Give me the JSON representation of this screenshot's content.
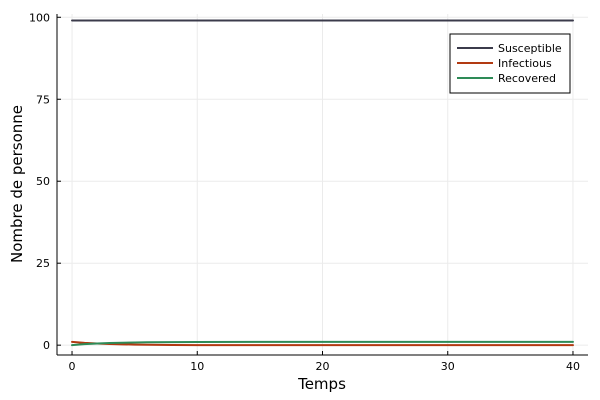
{
  "chart_data": {
    "type": "line",
    "title": "",
    "xlabel": "Temps",
    "ylabel": "Nombre de personne",
    "xlim": [
      -1.2,
      41.2
    ],
    "ylim": [
      -3,
      101
    ],
    "xticks": [
      0,
      10,
      20,
      30,
      40
    ],
    "yticks": [
      0,
      25,
      50,
      75,
      100
    ],
    "x_tick_labels": [
      "0",
      "10",
      "20",
      "30",
      "40"
    ],
    "y_tick_labels": [
      "0",
      "25",
      "50",
      "75",
      "100"
    ],
    "grid": true,
    "legend_position": "top-right",
    "x": [
      0,
      1,
      2,
      3,
      4,
      5,
      6,
      8,
      10,
      15,
      20,
      25,
      30,
      35,
      40
    ],
    "series": [
      {
        "name": "Susceptible",
        "color": "#3b3b4b",
        "values": [
          99,
          99,
          99,
          99,
          99,
          99,
          99,
          99,
          99,
          99,
          99,
          99,
          99,
          99,
          99
        ]
      },
      {
        "name": "Infectious",
        "color": "#b23a12",
        "values": [
          1.0,
          0.7,
          0.5,
          0.35,
          0.25,
          0.18,
          0.12,
          0.06,
          0.03,
          0.005,
          0.0,
          0.0,
          0.0,
          0.0,
          0.0
        ]
      },
      {
        "name": "Recovered",
        "color": "#2e8b57",
        "values": [
          0.0,
          0.3,
          0.5,
          0.65,
          0.75,
          0.82,
          0.88,
          0.94,
          0.97,
          0.995,
          1.0,
          1.0,
          1.0,
          1.0,
          1.0
        ]
      }
    ]
  }
}
